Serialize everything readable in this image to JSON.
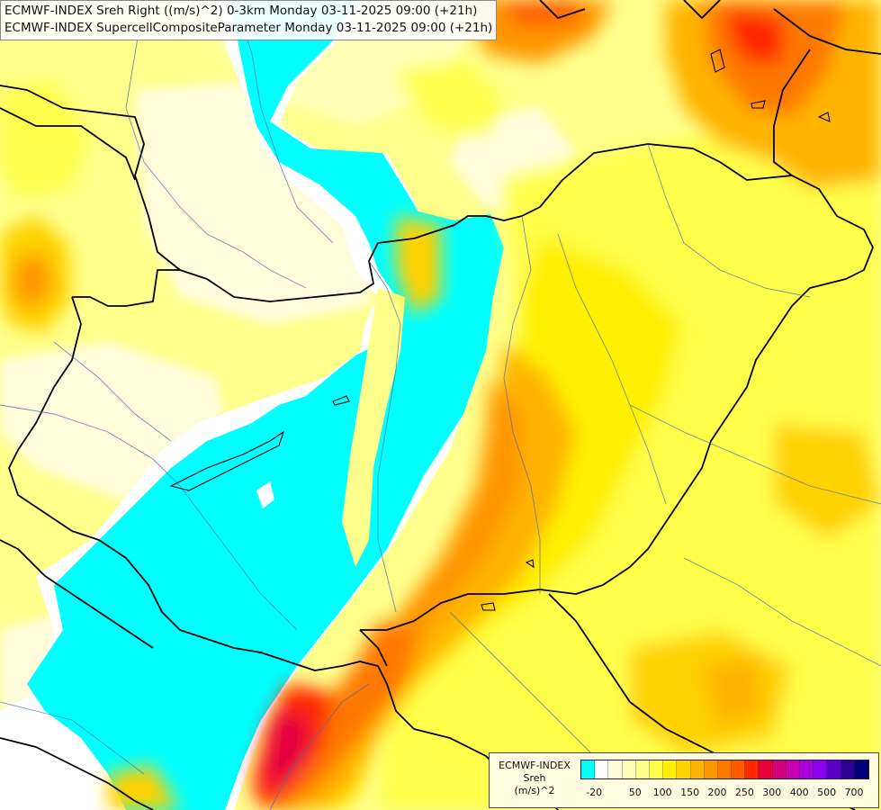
{
  "title": {
    "line1": "ECMWF-INDEX Sreh Right ((m/s)^2) 0-3km Monday 03-11-2025 09:00 (+21h)",
    "line2": "ECMWF-INDEX SupercellCompositeParameter Monday 03-11-2025 09:00 (+21h)"
  },
  "legend": {
    "line1": "ECMWF-INDEX",
    "line2": "Sreh",
    "line3": "(m/s)^2",
    "colors": [
      "#00ffff",
      "#ffffff",
      "#fffcdc",
      "#ffffb8",
      "#ffff8c",
      "#ffff4c",
      "#fff000",
      "#ffd200",
      "#ffb400",
      "#ff9600",
      "#ff7800",
      "#ff5a00",
      "#ff2800",
      "#e6003c",
      "#d2007d",
      "#c800b4",
      "#aa00dc",
      "#8c00f0",
      "#5a00c8",
      "#2d0096",
      "#000078"
    ],
    "ticks": [
      "-20",
      "50",
      "100",
      "150",
      "200",
      "250",
      "300",
      "400",
      "500",
      "700"
    ]
  }
}
